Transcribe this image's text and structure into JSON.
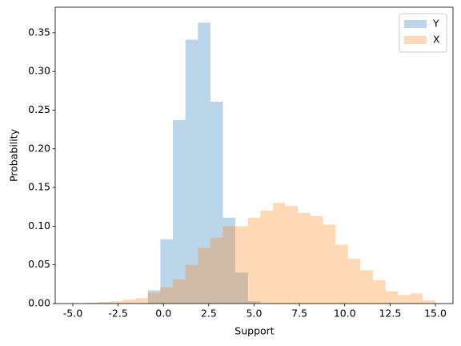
{
  "chart_data": {
    "type": "histogram",
    "xlabel": "Support",
    "ylabel": "Probability",
    "bins": [
      -4.31,
      -3.62,
      -2.93,
      -2.24,
      -1.55,
      -0.86,
      -0.17,
      0.52,
      1.21,
      1.9,
      2.59,
      3.28,
      3.97,
      4.66,
      5.35,
      6.04,
      6.72,
      7.41,
      8.1,
      8.79,
      9.48,
      10.17,
      10.86,
      11.55,
      12.24,
      12.93,
      13.62,
      14.31,
      15.0
    ],
    "series": [
      {
        "name": "Y",
        "color": "#1f77b4",
        "values": [
          0,
          0,
          0,
          0,
          0,
          0.017,
          0.083,
          0.237,
          0.341,
          0.363,
          0.261,
          0.111,
          0.04,
          0.003,
          0,
          0,
          0,
          0,
          0,
          0,
          0,
          0,
          0,
          0,
          0,
          0,
          0,
          0
        ]
      },
      {
        "name": "X",
        "color": "#ff7f0e",
        "values": [
          0.001,
          0.002,
          0.003,
          0.005,
          0.007,
          0.014,
          0.021,
          0.031,
          0.05,
          0.072,
          0.085,
          0.1,
          0.1,
          0.111,
          0.12,
          0.13,
          0.126,
          0.117,
          0.113,
          0.102,
          0.076,
          0.058,
          0.043,
          0.03,
          0.016,
          0.011,
          0.013,
          0.004
        ]
      }
    ],
    "alpha": 0.3,
    "xlim": [
      -5.97,
      15.97
    ],
    "ylim": [
      0,
      0.383
    ],
    "xticks": [
      {
        "value": -5,
        "label": "-5.0"
      },
      {
        "value": -2.5,
        "label": "-2.5"
      },
      {
        "value": 0,
        "label": "0.0"
      },
      {
        "value": 2.5,
        "label": "2.5"
      },
      {
        "value": 5,
        "label": "5.0"
      },
      {
        "value": 7.5,
        "label": "7.5"
      },
      {
        "value": 10,
        "label": "10.0"
      },
      {
        "value": 12.5,
        "label": "12.5"
      },
      {
        "value": 15,
        "label": "15.0"
      }
    ],
    "yticks": [
      {
        "value": 0,
        "label": "0.00"
      },
      {
        "value": 0.05,
        "label": "0.05"
      },
      {
        "value": 0.1,
        "label": "0.10"
      },
      {
        "value": 0.15,
        "label": "0.15"
      },
      {
        "value": 0.2,
        "label": "0.20"
      },
      {
        "value": 0.25,
        "label": "0.25"
      },
      {
        "value": 0.3,
        "label": "0.30"
      },
      {
        "value": 0.35,
        "label": "0.35"
      }
    ],
    "legend": "upper right"
  }
}
